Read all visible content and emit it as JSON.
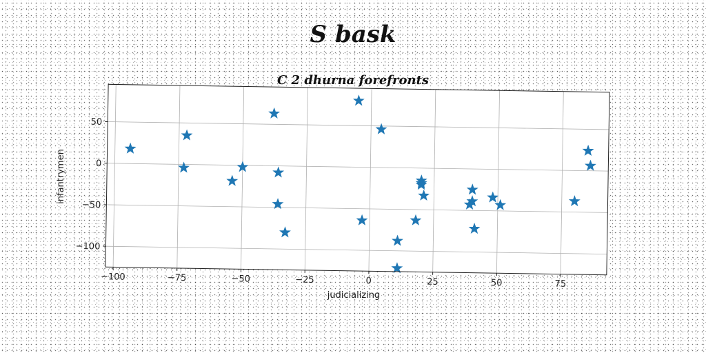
{
  "chart_data": {
    "type": "scatter",
    "title": "S bask",
    "subtitle": "C 2 dhurna forefronts",
    "xlabel": "judicializing",
    "ylabel": "infantrymen",
    "xlim": [
      -103,
      93
    ],
    "ylim": [
      -125,
      95
    ],
    "xticks": [
      -100,
      -75,
      -50,
      -25,
      0,
      25,
      50,
      75
    ],
    "yticks": [
      -100,
      -50,
      0,
      50
    ],
    "grid": true,
    "marker": "star",
    "color": "#1f77b4",
    "series": [
      {
        "x": [
          -94,
          -72,
          -73,
          -38,
          -50,
          -54,
          -36,
          -36,
          -33,
          -5,
          4,
          -3,
          11,
          11,
          18,
          20,
          20,
          20,
          21,
          40,
          40,
          39,
          41,
          48,
          51,
          80,
          85,
          86
        ],
        "y": [
          18,
          35,
          -4,
          63,
          -2,
          -19,
          -8,
          -46,
          -80,
          80,
          46,
          -64,
          -88,
          -121,
          -63,
          -15,
          -18,
          -20,
          -33,
          -25,
          -39,
          -43,
          -72,
          -34,
          -43,
          -37,
          24,
          6
        ]
      }
    ]
  }
}
